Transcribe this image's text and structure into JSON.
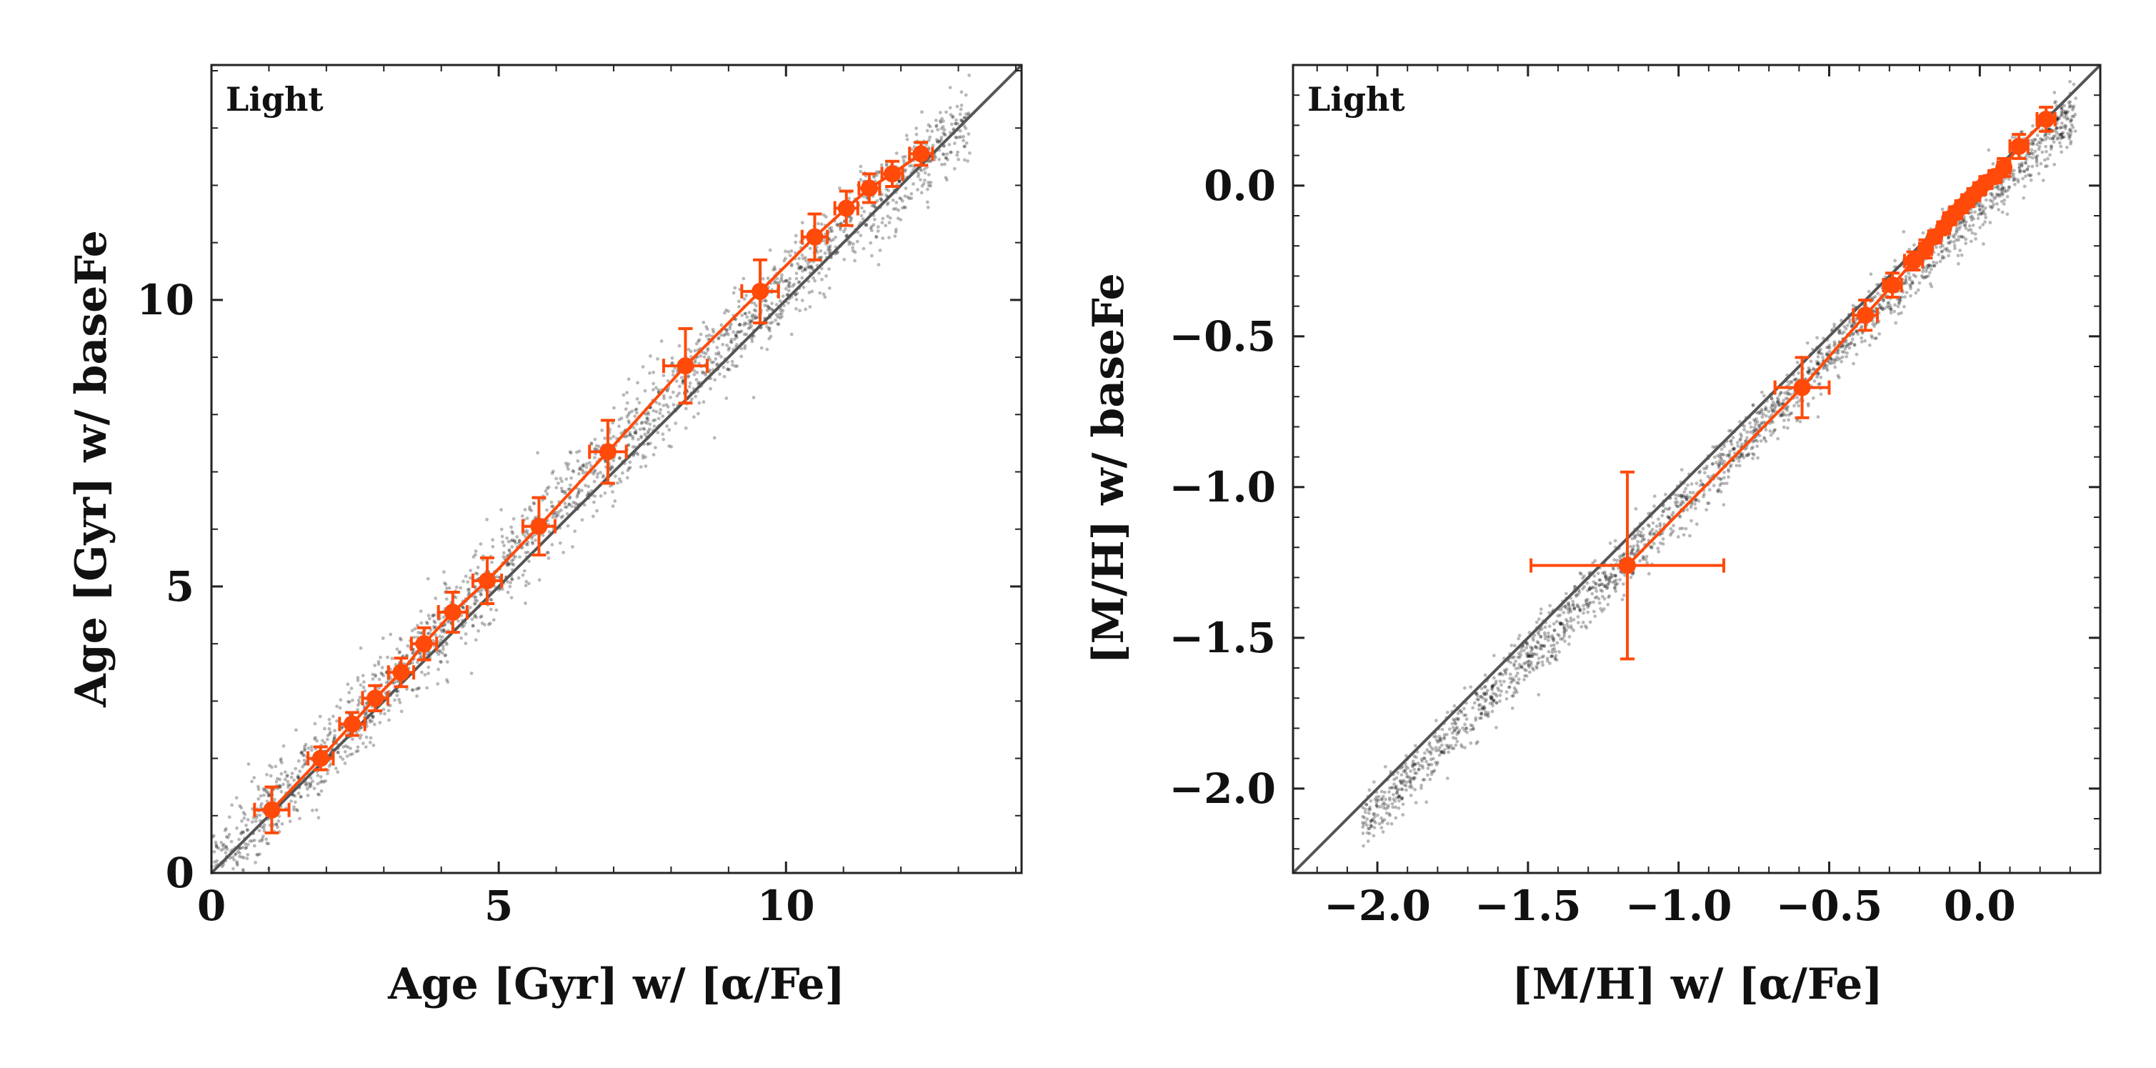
{
  "colors": {
    "accent": "#ff4a0a",
    "scatter": "#000000",
    "identity_line": "#555555",
    "axes": "#222222",
    "background": "#ffffff"
  },
  "chart_data": [
    {
      "type": "scatter",
      "panel_label": "Light",
      "xlabel": "Age [Gyr] w/ [α/Fe]",
      "ylabel": "Age [Gyr] w/ baseFe",
      "xlim": [
        0,
        14.1
      ],
      "ylim": [
        0,
        14.1
      ],
      "xticks": [
        0,
        5,
        10
      ],
      "yticks": [
        0,
        5,
        10
      ],
      "xtick_labels": [
        "0",
        "5",
        "10"
      ],
      "ytick_labels": [
        "0",
        "5",
        "10"
      ],
      "xminor": 1,
      "yminor": 1,
      "identity_line": true,
      "cloud": {
        "description": "dense cloud of individual bins",
        "x_range": [
          0,
          13.2
        ],
        "center_offset": 0.25,
        "spread": 0.35
      },
      "binned": {
        "x": [
          1.05,
          1.9,
          2.45,
          2.85,
          3.3,
          3.7,
          4.2,
          4.8,
          5.7,
          6.9,
          8.25,
          9.55,
          10.5,
          11.05,
          11.45,
          11.85,
          12.35
        ],
        "y": [
          1.1,
          2.0,
          2.6,
          3.05,
          3.5,
          4.0,
          4.55,
          5.1,
          6.05,
          7.35,
          8.85,
          10.15,
          11.1,
          11.6,
          11.95,
          12.2,
          12.55
        ],
        "xerr": [
          0.3,
          0.22,
          0.22,
          0.22,
          0.22,
          0.22,
          0.25,
          0.25,
          0.28,
          0.32,
          0.38,
          0.32,
          0.22,
          0.2,
          0.18,
          0.18,
          0.2
        ],
        "yerr": [
          0.4,
          0.2,
          0.2,
          0.22,
          0.25,
          0.28,
          0.35,
          0.4,
          0.5,
          0.55,
          0.65,
          0.55,
          0.4,
          0.3,
          0.25,
          0.22,
          0.2
        ]
      }
    },
    {
      "type": "scatter",
      "panel_label": "Light",
      "xlabel": "[M/H] w/ [α/Fe]",
      "ylabel": "[M/H] w/ baseFe",
      "xlim": [
        -2.28,
        0.4
      ],
      "ylim": [
        -2.28,
        0.4
      ],
      "xticks": [
        -2.0,
        -1.5,
        -1.0,
        -0.5,
        0.0
      ],
      "yticks": [
        -2.0,
        -1.5,
        -1.0,
        -0.5,
        0.0
      ],
      "xtick_labels": [
        "−2.0",
        "−1.5",
        "−1.0",
        "−0.5",
        "0.0"
      ],
      "ytick_labels": [
        "−2.0",
        "−1.5",
        "−1.0",
        "−0.5",
        "0.0"
      ],
      "xminor": 0.1,
      "yminor": 0.1,
      "identity_line": true,
      "cloud": {
        "description": "narrow band of individual bins",
        "x_range": [
          -2.05,
          0.32
        ],
        "center_offset": -0.07,
        "spread": 0.045
      },
      "binned": {
        "x": [
          -1.17,
          -0.59,
          -0.38,
          -0.29,
          -0.22,
          -0.18,
          -0.15,
          -0.12,
          -0.1,
          -0.08,
          -0.06,
          -0.04,
          -0.02,
          0.0,
          0.02,
          0.05,
          0.08,
          0.13,
          0.22
        ],
        "y": [
          -1.26,
          -0.67,
          -0.43,
          -0.33,
          -0.25,
          -0.21,
          -0.17,
          -0.14,
          -0.11,
          -0.09,
          -0.07,
          -0.05,
          -0.03,
          -0.01,
          0.01,
          0.03,
          0.06,
          0.13,
          0.22
        ],
        "xerr": [
          0.32,
          0.09,
          0.04,
          0.03,
          0.03,
          0.02,
          0.02,
          0.02,
          0.02,
          0.02,
          0.02,
          0.02,
          0.02,
          0.02,
          0.02,
          0.02,
          0.02,
          0.03,
          0.03
        ],
        "yerr": [
          0.31,
          0.1,
          0.05,
          0.04,
          0.03,
          0.03,
          0.02,
          0.02,
          0.02,
          0.02,
          0.02,
          0.02,
          0.02,
          0.02,
          0.02,
          0.02,
          0.03,
          0.04,
          0.04
        ]
      }
    }
  ]
}
